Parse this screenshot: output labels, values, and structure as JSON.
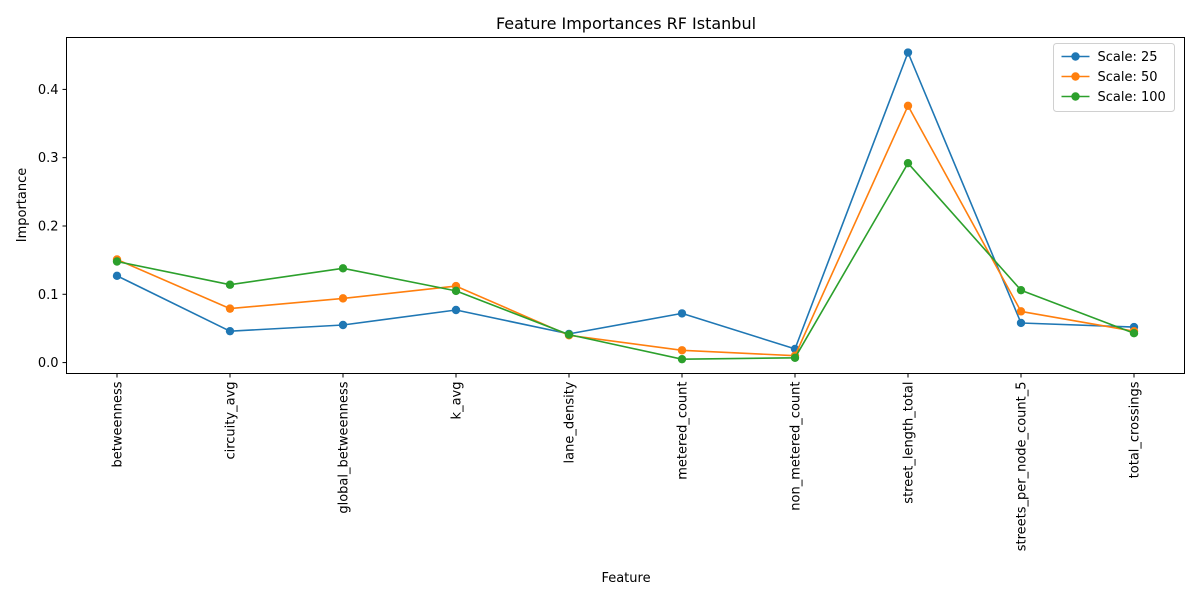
{
  "chart_data": {
    "type": "line",
    "title": "Feature Importances RF Istanbul",
    "xlabel": "Feature",
    "ylabel": "Importance",
    "categories": [
      "betweenness",
      "circuity_avg",
      "global_betweenness",
      "k_avg",
      "lane_density",
      "metered_count",
      "non_metered_count",
      "street_length_total",
      "streets_per_node_count_5",
      "total_crossings"
    ],
    "ylim": [
      -0.016,
      0.476
    ],
    "yticks": [
      0.0,
      0.1,
      0.2,
      0.3,
      0.4
    ],
    "ytick_labels": [
      "0.0",
      "0.1",
      "0.2",
      "0.3",
      "0.4"
    ],
    "grid": false,
    "legend_position": "top-right",
    "series": [
      {
        "name": "Scale: 25",
        "color": "#1f77b4",
        "values": [
          0.127,
          0.046,
          0.055,
          0.077,
          0.042,
          0.072,
          0.02,
          0.454,
          0.058,
          0.052
        ]
      },
      {
        "name": "Scale: 50",
        "color": "#ff7f0e",
        "values": [
          0.151,
          0.079,
          0.094,
          0.112,
          0.04,
          0.018,
          0.01,
          0.376,
          0.075,
          0.046
        ]
      },
      {
        "name": "Scale: 100",
        "color": "#2ca02c",
        "values": [
          0.148,
          0.114,
          0.138,
          0.105,
          0.041,
          0.005,
          0.007,
          0.292,
          0.106,
          0.043
        ]
      }
    ]
  }
}
